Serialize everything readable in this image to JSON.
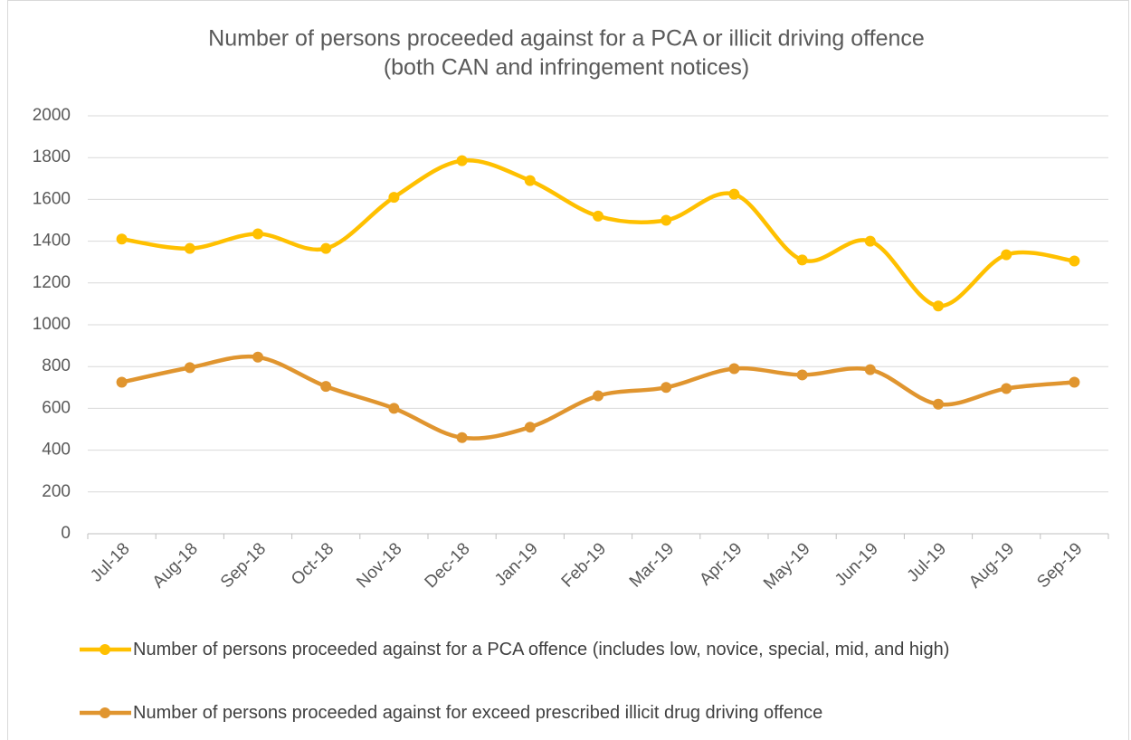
{
  "chart_data": {
    "type": "line",
    "title": [
      "Number of persons proceeded against for a PCA or illicit driving offence",
      "(both CAN and infringement notices)"
    ],
    "categories": [
      "Jul-18",
      "Aug-18",
      "Sep-18",
      "Oct-18",
      "Nov-18",
      "Dec-18",
      "Jan-19",
      "Feb-19",
      "Mar-19",
      "Apr-19",
      "May-19",
      "Jun-19",
      "Jul-19",
      "Aug-19",
      "Sep-19"
    ],
    "series": [
      {
        "name": "Number of persons proceeded against for a PCA offence (includes low, novice, special, mid, and high)",
        "color": "#ffc000",
        "values": [
          1410,
          1365,
          1435,
          1365,
          1610,
          1785,
          1690,
          1520,
          1500,
          1625,
          1310,
          1400,
          1090,
          1335,
          1305
        ]
      },
      {
        "name": "Number of persons proceeded against for exceed prescribed illicit drug driving offence",
        "color": "#e0952f",
        "values": [
          725,
          795,
          845,
          705,
          600,
          460,
          510,
          660,
          700,
          790,
          760,
          785,
          620,
          695,
          725
        ]
      }
    ],
    "ylim": [
      0,
      2000
    ],
    "yticks": [
      0,
      200,
      400,
      600,
      800,
      1000,
      1200,
      1400,
      1600,
      1800,
      2000
    ],
    "grid": true,
    "legend": "bottom",
    "smooth": true
  }
}
